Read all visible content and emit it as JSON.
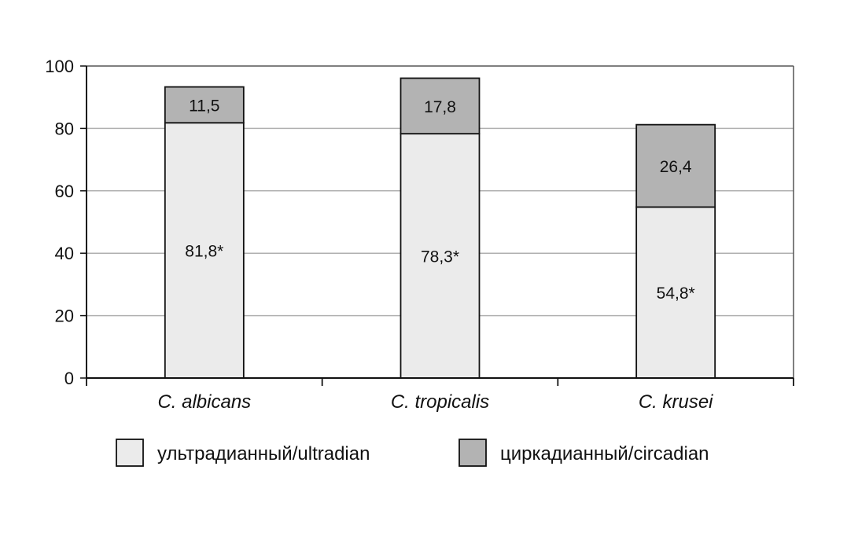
{
  "chart_data": {
    "type": "bar",
    "stacked": true,
    "categories": [
      "C. albicans",
      "C. tropicalis",
      "C. krusei"
    ],
    "series": [
      {
        "name": "ультрадианный/ultradian",
        "values": [
          81.8,
          78.3,
          54.8
        ],
        "labels": [
          "81,8*",
          "78,3*",
          "54,8*"
        ],
        "color": "#ebebeb"
      },
      {
        "name": "циркадианный/circadian",
        "values": [
          11.5,
          17.8,
          26.4
        ],
        "labels": [
          "11,5",
          "17,8",
          "26,4"
        ],
        "color": "#b3b3b3"
      }
    ],
    "y_ticks": [
      "0",
      "20",
      "40",
      "60",
      "80",
      "100"
    ],
    "ylim": [
      0,
      100
    ],
    "grid": true,
    "legend_position": "bottom"
  }
}
